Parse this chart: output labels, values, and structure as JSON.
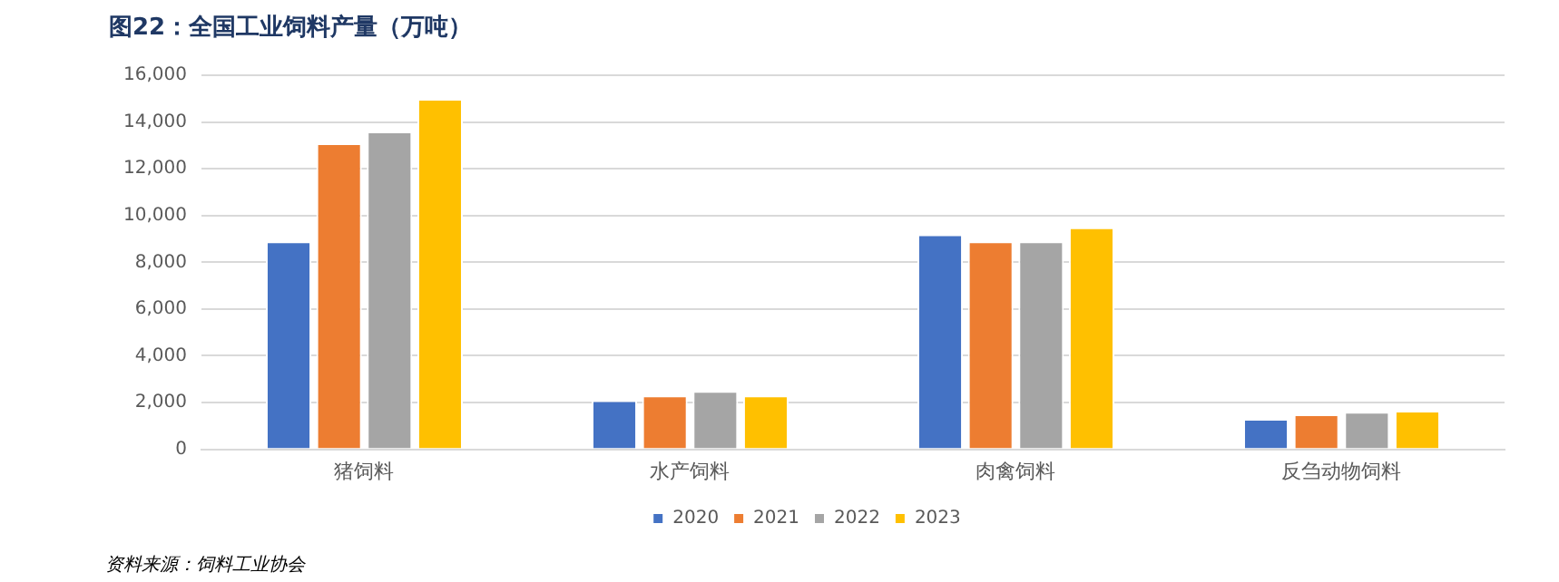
{
  "chart_data": {
    "type": "bar",
    "title": "图22：全国工业饲料产量（万吨）",
    "categories": [
      "猪饲料",
      "水产饲料",
      "肉禽饲料",
      "反刍动物饲料"
    ],
    "series": [
      {
        "name": "2020",
        "color": "#4472c4",
        "values": [
          8900,
          2100,
          9200,
          1300
        ]
      },
      {
        "name": "2021",
        "color": "#ed7d31",
        "values": [
          13100,
          2300,
          8900,
          1500
        ]
      },
      {
        "name": "2022",
        "color": "#a5a5a5",
        "values": [
          13600,
          2500,
          8900,
          1600
        ]
      },
      {
        "name": "2023",
        "color": "#ffc000",
        "values": [
          15000,
          2300,
          9500,
          1650
        ]
      }
    ],
    "ylim": [
      0,
      16000
    ],
    "yticks": [
      0,
      {
        "value": 2000,
        "label": "2,000"
      },
      {
        "value": 4000,
        "label": "4,000"
      },
      {
        "value": 6000,
        "label": "6,000"
      },
      {
        "value": 8000,
        "label": "8,000"
      },
      {
        "value": 10000,
        "label": "10,000"
      },
      {
        "value": 12000,
        "label": "12,000"
      },
      {
        "value": 14000,
        "label": "14,000"
      },
      {
        "value": 16000,
        "label": "16,000"
      }
    ],
    "grid": "y",
    "legend": "bottom",
    "annotations": [
      "资料来源：饲料工业协会"
    ]
  }
}
